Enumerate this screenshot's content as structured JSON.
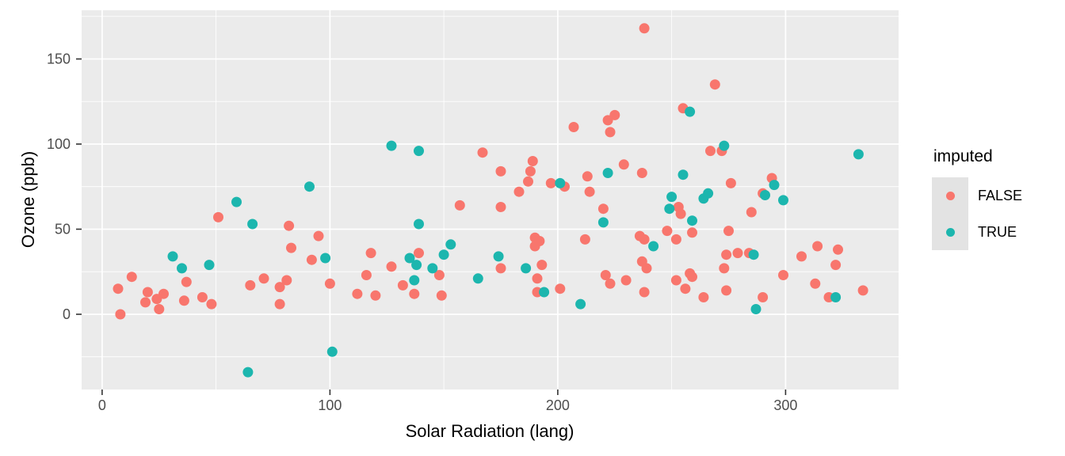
{
  "chart_data": {
    "type": "scatter",
    "title": "",
    "xlabel": "Solar Radiation (lang)",
    "ylabel": "Ozone (ppb)",
    "xlim": [
      -9,
      349.6
    ],
    "ylim": [
      -44.2,
      178.6
    ],
    "x_ticks": [
      0,
      100,
      200,
      300
    ],
    "y_ticks": [
      0,
      50,
      100,
      150
    ],
    "x_minor": [
      50,
      150,
      250
    ],
    "y_minor": [
      -25,
      25,
      75,
      125,
      175
    ],
    "grid": true,
    "panel_bg": "#ebebeb",
    "grid_color": "#ffffff",
    "tick_color": "#333333",
    "tick_label_color": "#4d4d4d",
    "legend": {
      "title": "imputed",
      "position": "right",
      "entries": [
        {
          "label": "FALSE",
          "color": "#f8766d"
        },
        {
          "label": "TRUE",
          "color": "#1cb6ae"
        }
      ]
    },
    "series": [
      {
        "name": "FALSE",
        "color": "#f8766d",
        "points": [
          [
            7,
            15
          ],
          [
            8,
            0
          ],
          [
            13,
            22
          ],
          [
            19,
            7
          ],
          [
            20,
            13
          ],
          [
            24,
            9
          ],
          [
            25,
            3
          ],
          [
            27,
            12
          ],
          [
            36,
            8
          ],
          [
            37,
            19
          ],
          [
            44,
            10
          ],
          [
            48,
            6
          ],
          [
            51,
            57
          ],
          [
            65,
            17
          ],
          [
            71,
            21
          ],
          [
            78,
            16
          ],
          [
            78,
            6
          ],
          [
            81,
            20
          ],
          [
            82,
            52
          ],
          [
            83,
            39
          ],
          [
            92,
            32
          ],
          [
            95,
            46
          ],
          [
            100,
            18
          ],
          [
            112,
            12
          ],
          [
            116,
            23
          ],
          [
            118,
            36
          ],
          [
            120,
            11
          ],
          [
            127,
            28
          ],
          [
            132,
            17
          ],
          [
            137,
            12
          ],
          [
            139,
            36
          ],
          [
            148,
            23
          ],
          [
            149,
            11
          ],
          [
            157,
            64
          ],
          [
            167,
            95
          ],
          [
            175,
            84
          ],
          [
            175,
            63
          ],
          [
            175,
            27
          ],
          [
            183,
            72
          ],
          [
            187,
            78
          ],
          [
            188,
            84
          ],
          [
            189,
            90
          ],
          [
            190,
            45
          ],
          [
            192,
            43
          ],
          [
            190,
            40
          ],
          [
            191,
            21
          ],
          [
            191,
            13
          ],
          [
            193,
            29
          ],
          [
            197,
            77
          ],
          [
            201,
            15
          ],
          [
            203,
            75
          ],
          [
            207,
            110
          ],
          [
            212,
            44
          ],
          [
            213,
            81
          ],
          [
            214,
            72
          ],
          [
            220,
            62
          ],
          [
            221,
            23
          ],
          [
            223,
            18
          ],
          [
            222,
            114
          ],
          [
            225,
            117
          ],
          [
            223,
            107
          ],
          [
            229,
            88
          ],
          [
            230,
            20
          ],
          [
            236,
            46
          ],
          [
            238,
            44
          ],
          [
            237,
            31
          ],
          [
            239,
            27
          ],
          [
            238,
            13
          ],
          [
            237,
            83
          ],
          [
            238,
            168
          ],
          [
            248,
            49
          ],
          [
            252,
            44
          ],
          [
            252,
            20
          ],
          [
            253,
            63
          ],
          [
            254,
            59
          ],
          [
            255,
            121
          ],
          [
            256,
            15
          ],
          [
            258,
            24
          ],
          [
            259,
            22
          ],
          [
            259,
            48
          ],
          [
            264,
            10
          ],
          [
            267,
            96
          ],
          [
            269,
            135
          ],
          [
            272,
            96
          ],
          [
            273,
            27
          ],
          [
            274,
            35
          ],
          [
            274,
            14
          ],
          [
            275,
            49
          ],
          [
            276,
            77
          ],
          [
            279,
            36
          ],
          [
            284,
            36
          ],
          [
            285,
            60
          ],
          [
            290,
            10
          ],
          [
            290,
            71
          ],
          [
            294,
            80
          ],
          [
            299,
            23
          ],
          [
            307,
            34
          ],
          [
            313,
            18
          ],
          [
            314,
            40
          ],
          [
            319,
            10
          ],
          [
            322,
            29
          ],
          [
            323,
            38
          ],
          [
            334,
            14
          ]
        ]
      },
      {
        "name": "TRUE",
        "color": "#1cb6ae",
        "points": [
          [
            31,
            34
          ],
          [
            35,
            27
          ],
          [
            47,
            29
          ],
          [
            59,
            66
          ],
          [
            64,
            -34
          ],
          [
            66,
            53
          ],
          [
            91,
            75
          ],
          [
            98,
            33
          ],
          [
            101,
            -22
          ],
          [
            127,
            99
          ],
          [
            135,
            33
          ],
          [
            137,
            20
          ],
          [
            139,
            53
          ],
          [
            138,
            29
          ],
          [
            139,
            96
          ],
          [
            145,
            27
          ],
          [
            150,
            35
          ],
          [
            153,
            41
          ],
          [
            165,
            21
          ],
          [
            174,
            34
          ],
          [
            186,
            27
          ],
          [
            194,
            13
          ],
          [
            201,
            77
          ],
          [
            210,
            6
          ],
          [
            220,
            54
          ],
          [
            222,
            83
          ],
          [
            242,
            40
          ],
          [
            249,
            62
          ],
          [
            250,
            69
          ],
          [
            255,
            82
          ],
          [
            258,
            119
          ],
          [
            259,
            55
          ],
          [
            264,
            68
          ],
          [
            266,
            71
          ],
          [
            273,
            99
          ],
          [
            286,
            35
          ],
          [
            287,
            3
          ],
          [
            291,
            70
          ],
          [
            295,
            76
          ],
          [
            299,
            67
          ],
          [
            322,
            10
          ],
          [
            332,
            94
          ]
        ]
      }
    ]
  }
}
